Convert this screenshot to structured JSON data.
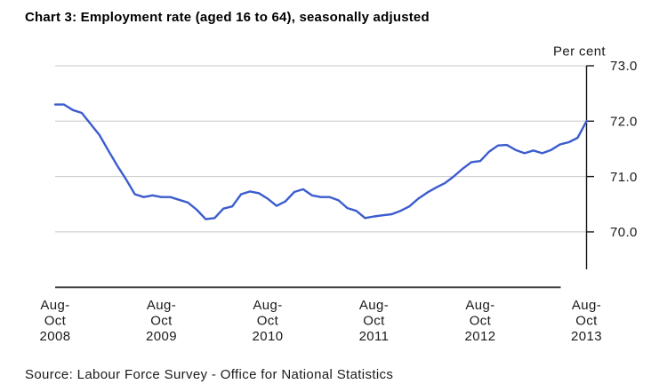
{
  "chart_data": {
    "type": "line",
    "title": "Chart 3: Employment rate (aged 16 to 64), seasonally adjusted",
    "unit_label": "Per cent",
    "source": "Source: Labour Force Survey - Office for National Statistics",
    "y_axis": {
      "position": "right",
      "ticks": [
        73.0,
        72.0,
        71.0,
        70.0
      ],
      "tick_labels": [
        "73.0",
        "72.0",
        "71.0",
        "70.0"
      ],
      "shown_range": [
        69.3,
        73.0
      ]
    },
    "x_axis": {
      "tick_labels": [
        "Aug-Oct 2008",
        "Aug-Oct 2009",
        "Aug-Oct 2010",
        "Aug-Oct 2011",
        "Aug-Oct 2012",
        "Aug-Oct 2013"
      ],
      "tick_label_lines": [
        [
          "Aug-",
          "Oct",
          "2008"
        ],
        [
          "Aug-",
          "Oct",
          "2009"
        ],
        [
          "Aug-",
          "Oct",
          "2010"
        ],
        [
          "Aug-",
          "Oct",
          "2011"
        ],
        [
          "Aug-",
          "Oct",
          "2012"
        ],
        [
          "Aug-",
          "Oct",
          "2013"
        ]
      ],
      "points_between_year_labels": 12
    },
    "grid": "horizontal gridlines at each y tick",
    "legend": "none",
    "series": [
      {
        "name": "Employment rate (aged 16 to 64), seasonally adjusted",
        "first_period": "Aug-Oct 2008",
        "last_period": "Aug-Oct 2013",
        "values": [
          72.3,
          72.3,
          72.2,
          72.15,
          71.95,
          71.75,
          71.47,
          71.2,
          70.95,
          70.68,
          70.63,
          70.66,
          70.63,
          70.63,
          70.58,
          70.53,
          70.4,
          70.23,
          70.25,
          70.42,
          70.46,
          70.68,
          70.73,
          70.7,
          70.6,
          70.47,
          70.55,
          70.72,
          70.77,
          70.66,
          70.63,
          70.63,
          70.57,
          70.43,
          70.38,
          70.25,
          70.28,
          70.3,
          70.32,
          70.38,
          70.46,
          70.6,
          70.71,
          70.8,
          70.88,
          71.0,
          71.14,
          71.26,
          71.28,
          71.45,
          71.56,
          71.57,
          71.48,
          71.42,
          71.47,
          71.42,
          71.48,
          71.58,
          71.62,
          71.7,
          72.0
        ]
      }
    ],
    "colors": {
      "line": "#3B5CCE",
      "gridline": "#C8C8C8",
      "x_axis_line": "#404040",
      "y_axis_line": "#1A1A1A",
      "text": "#1A1A1A"
    }
  }
}
